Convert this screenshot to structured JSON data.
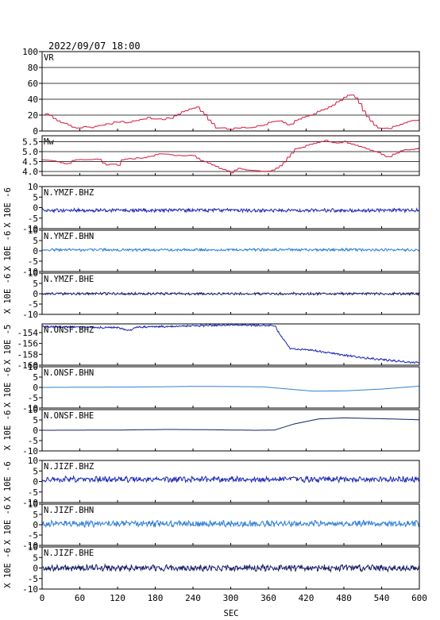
{
  "header": {
    "datetime": "2022/09/07  18:00"
  },
  "chart_data": {
    "type": "line",
    "xlabel": "SEC",
    "xlim": [
      0,
      600
    ],
    "x_ticks": [
      0,
      60,
      120,
      180,
      240,
      300,
      360,
      420,
      480,
      540,
      600
    ],
    "x_tick_labels": [
      "0",
      "60",
      "120",
      "180",
      "240",
      "300",
      "360",
      "420",
      "480",
      "540",
      "600"
    ],
    "panels": [
      {
        "label": "VR",
        "side_label": "",
        "color": "#d2143c",
        "ylim": [
          0,
          100
        ],
        "y_ticks": [
          0,
          20,
          40,
          60,
          80,
          100
        ],
        "y_tick_labels": [
          "0",
          "20",
          "40",
          "60",
          "80",
          "100"
        ],
        "grid": true,
        "kind": "stepped",
        "noise": 0,
        "seed": 1,
        "knots": [
          [
            0,
            20
          ],
          [
            10,
            22
          ],
          [
            20,
            15
          ],
          [
            40,
            7
          ],
          [
            55,
            4
          ],
          [
            80,
            5
          ],
          [
            100,
            9
          ],
          [
            120,
            11
          ],
          [
            150,
            12
          ],
          [
            165,
            17
          ],
          [
            180,
            14
          ],
          [
            200,
            16
          ],
          [
            215,
            20
          ],
          [
            230,
            27
          ],
          [
            245,
            30
          ],
          [
            258,
            20
          ],
          [
            275,
            5
          ],
          [
            295,
            3
          ],
          [
            330,
            4
          ],
          [
            350,
            8
          ],
          [
            375,
            14
          ],
          [
            390,
            7
          ],
          [
            410,
            16
          ],
          [
            440,
            25
          ],
          [
            465,
            35
          ],
          [
            488,
            46
          ],
          [
            500,
            42
          ],
          [
            510,
            25
          ],
          [
            530,
            5
          ],
          [
            550,
            3
          ],
          [
            575,
            10
          ],
          [
            600,
            15
          ]
        ]
      },
      {
        "label": "Mw",
        "side_label": "",
        "color": "#d2143c",
        "ylim": [
          3.8,
          5.8
        ],
        "y_ticks": [
          4.0,
          4.5,
          5.0,
          5.5
        ],
        "y_tick_labels": [
          "4.0",
          "4.5",
          "5.0",
          "5.5"
        ],
        "grid": true,
        "kind": "stepped",
        "noise": 0,
        "seed": 2,
        "knots": [
          [
            0,
            4.6
          ],
          [
            20,
            4.5
          ],
          [
            40,
            4.35
          ],
          [
            50,
            4.6
          ],
          [
            90,
            4.6
          ],
          [
            100,
            4.3
          ],
          [
            115,
            4.4
          ],
          [
            120,
            4.3
          ],
          [
            125,
            4.6
          ],
          [
            160,
            4.7
          ],
          [
            175,
            4.8
          ],
          [
            190,
            4.9
          ],
          [
            210,
            4.8
          ],
          [
            225,
            4.8
          ],
          [
            240,
            4.8
          ],
          [
            250,
            4.6
          ],
          [
            265,
            4.4
          ],
          [
            280,
            4.2
          ],
          [
            300,
            3.95
          ],
          [
            310,
            4.15
          ],
          [
            330,
            4.05
          ],
          [
            350,
            4.0
          ],
          [
            360,
            4.0
          ],
          [
            380,
            4.3
          ],
          [
            400,
            5.1
          ],
          [
            420,
            5.3
          ],
          [
            450,
            5.55
          ],
          [
            470,
            5.4
          ],
          [
            480,
            5.5
          ],
          [
            510,
            5.2
          ],
          [
            530,
            5.0
          ],
          [
            550,
            4.7
          ],
          [
            560,
            4.9
          ],
          [
            575,
            5.1
          ],
          [
            590,
            5.1
          ],
          [
            600,
            5.2
          ]
        ]
      },
      {
        "label": "N.YMZF.BHZ",
        "side_label": "X 10E -6",
        "color": "#1a27b5",
        "ylim": [
          -10,
          10
        ],
        "y_ticks": [
          -10,
          -5,
          0,
          5,
          10
        ],
        "y_tick_labels": [
          "-10",
          "-5",
          "0",
          "5",
          "10"
        ],
        "grid": false,
        "kind": "noise",
        "noise": 0.7,
        "seed": 3,
        "knots": [
          [
            0,
            -1.3
          ],
          [
            600,
            -1.3
          ]
        ]
      },
      {
        "label": "N.YMZF.BHN",
        "side_label": "X 10E -6",
        "color": "#2e7fd6",
        "ylim": [
          -10,
          10
        ],
        "y_ticks": [
          -10,
          -5,
          0,
          5,
          10
        ],
        "y_tick_labels": [
          "-10",
          "-5",
          "0",
          "5",
          "10"
        ],
        "grid": false,
        "kind": "noise",
        "noise": 0.55,
        "seed": 4,
        "knots": [
          [
            0,
            0.5
          ],
          [
            600,
            0.5
          ]
        ]
      },
      {
        "label": "N.YMZF.BHE",
        "side_label": "X 10E -6",
        "color": "#141c66",
        "ylim": [
          -10,
          10
        ],
        "y_ticks": [
          -10,
          -5,
          0,
          5,
          10
        ],
        "y_tick_labels": [
          "-10",
          "-5",
          "0",
          "5",
          "10"
        ],
        "grid": false,
        "kind": "noise",
        "noise": 0.5,
        "seed": 5,
        "knots": [
          [
            0,
            0
          ],
          [
            600,
            0
          ]
        ]
      },
      {
        "label": "N.ONSF.BHZ",
        "side_label": "X 10E -5",
        "color": "#1a27b5",
        "ylim": [
          -160,
          -152.4
        ],
        "y_ticks": [
          -160,
          -158,
          -156,
          -154
        ],
        "y_tick_labels": [
          "-160",
          "-158",
          "-156",
          "-154"
        ],
        "grid": false,
        "kind": "noise",
        "noise": 0.15,
        "seed": 6,
        "knots": [
          [
            0,
            -152.9
          ],
          [
            120,
            -153.1
          ],
          [
            140,
            -153.6
          ],
          [
            150,
            -153.0
          ],
          [
            300,
            -152.6
          ],
          [
            370,
            -152.7
          ],
          [
            380,
            -154.6
          ],
          [
            395,
            -157.0
          ],
          [
            420,
            -157.1
          ],
          [
            450,
            -157.6
          ],
          [
            500,
            -158.5
          ],
          [
            560,
            -159.2
          ],
          [
            600,
            -159.6
          ]
        ]
      },
      {
        "label": "N.ONSF.BHN",
        "side_label": "X 10E -6",
        "color": "#2e7fd6",
        "ylim": [
          -10,
          10
        ],
        "y_ticks": [
          -10,
          -5,
          0,
          5,
          10
        ],
        "y_tick_labels": [
          "-10",
          "-5",
          "0",
          "5",
          "10"
        ],
        "grid": false,
        "kind": "smooth",
        "noise": 0,
        "seed": 7,
        "knots": [
          [
            0,
            0
          ],
          [
            150,
            0.2
          ],
          [
            250,
            0.5
          ],
          [
            350,
            0.3
          ],
          [
            400,
            -1
          ],
          [
            430,
            -1.8
          ],
          [
            480,
            -1.7
          ],
          [
            540,
            -0.8
          ],
          [
            600,
            0.6
          ]
        ]
      },
      {
        "label": "N.ONSF.BHE",
        "side_label": "X 10E -6",
        "color": "#141c66",
        "ylim": [
          -10,
          10
        ],
        "y_ticks": [
          -10,
          -5,
          0,
          5,
          10
        ],
        "y_tick_labels": [
          "-10",
          "-5",
          "0",
          "5",
          "10"
        ],
        "grid": false,
        "kind": "smooth",
        "noise": 0,
        "seed": 8,
        "knots": [
          [
            0,
            0
          ],
          [
            120,
            0.1
          ],
          [
            200,
            0.4
          ],
          [
            250,
            0.3
          ],
          [
            340,
            0
          ],
          [
            370,
            0.1
          ],
          [
            400,
            3
          ],
          [
            440,
            5.5
          ],
          [
            480,
            6
          ],
          [
            540,
            5.6
          ],
          [
            600,
            5.1
          ]
        ]
      },
      {
        "label": "N.JIZF.BHZ",
        "side_label": "X 10E -6",
        "color": "#1a27b5",
        "ylim": [
          -10,
          10
        ],
        "y_ticks": [
          -10,
          -5,
          0,
          5,
          10
        ],
        "y_tick_labels": [
          "-10",
          "-5",
          "0",
          "5",
          "10"
        ],
        "grid": false,
        "kind": "noise",
        "noise": 1.2,
        "seed": 9,
        "knots": [
          [
            0,
            1
          ],
          [
            600,
            1
          ]
        ]
      },
      {
        "label": "N.JIZF.BHN",
        "side_label": "X 10E -6",
        "color": "#2e7fd6",
        "ylim": [
          -10,
          10
        ],
        "y_ticks": [
          -10,
          -5,
          0,
          5,
          10
        ],
        "y_tick_labels": [
          "-10",
          "-5",
          "0",
          "5",
          "10"
        ],
        "grid": false,
        "kind": "noise",
        "noise": 1.3,
        "seed": 10,
        "knots": [
          [
            0,
            0.5
          ],
          [
            600,
            0.5
          ]
        ]
      },
      {
        "label": "N.JIZF.BHE",
        "side_label": "X 10E -6",
        "color": "#141c66",
        "ylim": [
          -10,
          10
        ],
        "y_ticks": [
          -10,
          -5,
          0,
          5,
          10
        ],
        "y_tick_labels": [
          "-10",
          "-5",
          "0",
          "5",
          "10"
        ],
        "grid": false,
        "kind": "noise",
        "noise": 1.3,
        "seed": 11,
        "knots": [
          [
            0,
            0
          ],
          [
            600,
            0
          ]
        ]
      }
    ]
  }
}
